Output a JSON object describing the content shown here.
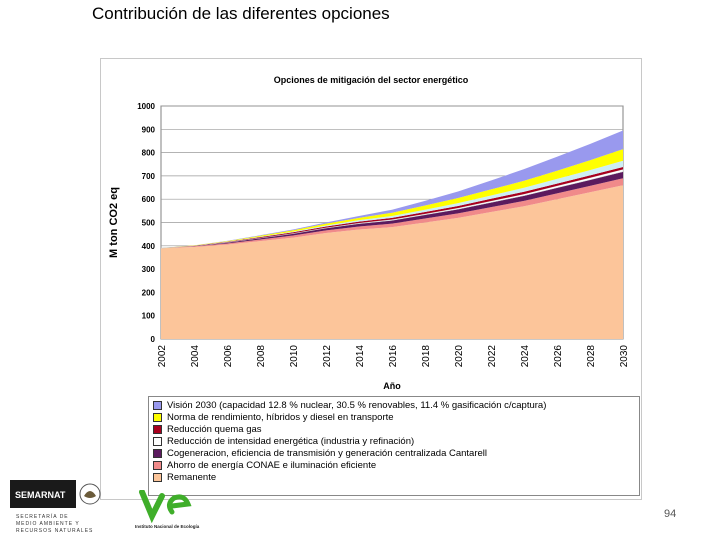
{
  "slide": {
    "title": "Contribución de las diferentes opciones",
    "page_number": "94"
  },
  "logos": {
    "semarnat_name": "SEMARNAT",
    "semarnat_lines": [
      "SECRETARÍA DE",
      "MEDIO AMBIENTE Y",
      "RECURSOS NATURALES"
    ],
    "ine_name": "Instituto Nacional de Ecología"
  },
  "chart_data": {
    "type": "area",
    "stacked": true,
    "title": "Opciones de mitigación del sector energético",
    "xlabel": "Año",
    "ylabel": "M ton CO2 eq",
    "ylim": [
      0,
      1000
    ],
    "yticks": [
      0,
      100,
      200,
      300,
      400,
      500,
      600,
      700,
      800,
      900,
      1000
    ],
    "xticks": [
      "2002",
      "2004",
      "2006",
      "2008",
      "2010",
      "2012",
      "2014",
      "2016",
      "2018",
      "2020",
      "2022",
      "2024",
      "2026",
      "2028",
      "2030"
    ],
    "x": [
      2002,
      2004,
      2006,
      2008,
      2010,
      2012,
      2014,
      2016,
      2018,
      2020,
      2022,
      2024,
      2026,
      2028,
      2030
    ],
    "grid": true,
    "legend_position": "bottom",
    "series": [
      {
        "name": "Remanente",
        "color": "#fcc59a",
        "values": [
          390,
          395,
          405,
          420,
          435,
          455,
          470,
          480,
          500,
          520,
          545,
          570,
          600,
          630,
          660
        ]
      },
      {
        "name": "Ahorro de energía CONAE e iluminación eficiente",
        "color": "#f08a8a",
        "values": [
          0,
          3,
          5,
          7,
          9,
          11,
          13,
          15,
          17,
          19,
          21,
          23,
          25,
          27,
          30
        ]
      },
      {
        "name": "Cogeneracion, eficiencia de transmisión y generación centralizada Cantarell",
        "color": "#5b1a5e",
        "values": [
          0,
          2,
          4,
          6,
          8,
          10,
          12,
          14,
          16,
          18,
          20,
          22,
          24,
          26,
          28
        ]
      },
      {
        "name": "Reducción de intensidad energética (industria y refinación)",
        "color": "#ffffff",
        "values": [
          0,
          0,
          1,
          1,
          2,
          2,
          3,
          4,
          4,
          5,
          6,
          7,
          8,
          9,
          10
        ]
      },
      {
        "name": "Reducción quema gas",
        "color": "#a8001e",
        "values": [
          0,
          1,
          2,
          3,
          4,
          5,
          6,
          7,
          8,
          9,
          10,
          10,
          10,
          10,
          10
        ]
      },
      {
        "name": "Reducción quema gas",
        "color": "#cdeef4",
        "values": [
          0,
          0,
          1,
          2,
          3,
          4,
          6,
          8,
          10,
          12,
          14,
          17,
          20,
          23,
          27
        ]
      },
      {
        "name": "Norma de rendimiento, híbridos y diesel en transporte",
        "color": "#ffff00",
        "values": [
          0,
          1,
          2,
          4,
          6,
          8,
          10,
          14,
          18,
          22,
          26,
          30,
          35,
          42,
          50
        ]
      },
      {
        "name": "Visión 2030 (capacidad 12.8 % nuclear, 30.5 % renovables, 11.4 % gasificación c/captura)",
        "color": "#9999ee",
        "values": [
          0,
          0,
          1,
          2,
          3,
          5,
          8,
          13,
          20,
          28,
          38,
          50,
          60,
          70,
          80
        ]
      }
    ],
    "legend": [
      {
        "label": "Visión 2030 (capacidad 12.8 % nuclear, 30.5 % renovables, 11.4 % gasificación c/captura)",
        "color": "#9999ee"
      },
      {
        "label": "Norma de rendimiento, híbridos y diesel en transporte",
        "color": "#ffff00"
      },
      {
        "label": "Reducción quema gas",
        "color": "#a8001e"
      },
      {
        "label": "Reducción de intensidad energética (industria y refinación)",
        "color": "#ffffff"
      },
      {
        "label": "Cogeneracion, eficiencia de transmisión y generación centralizada Cantarell",
        "color": "#5b1a5e"
      },
      {
        "label": "Ahorro de energía CONAE e iluminación eficiente",
        "color": "#f08a8a"
      },
      {
        "label": "Remanente",
        "color": "#fcc59a"
      }
    ]
  }
}
